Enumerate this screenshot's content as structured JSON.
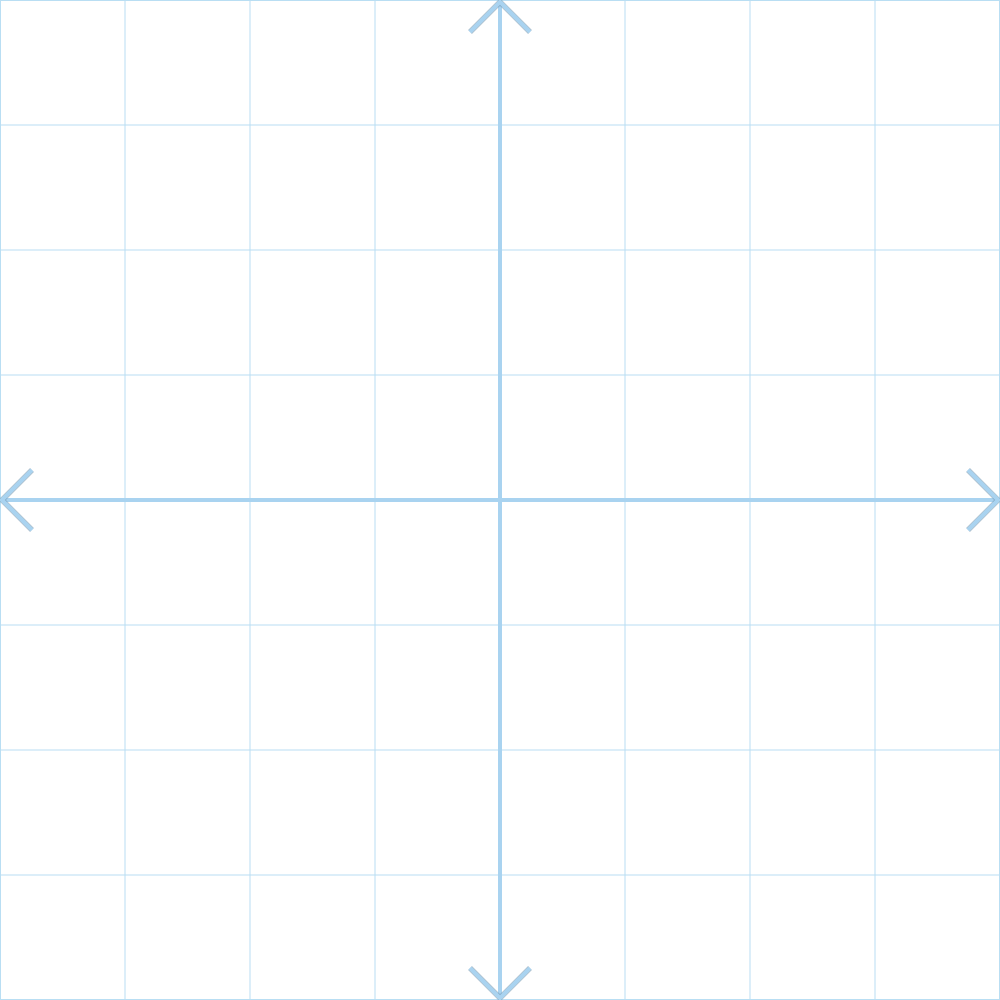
{
  "grid": {
    "x_range": [
      -4,
      4
    ],
    "y_range": [
      -4,
      4
    ],
    "step": 1,
    "show_grid": true,
    "tick_labels": false,
    "axis_arrows": "both-ends",
    "colors": {
      "background": "#ffffff",
      "grid_line": "#b9def3",
      "axis": "#a9d3f0",
      "arrow_shadow": "#6c8ca6"
    }
  }
}
